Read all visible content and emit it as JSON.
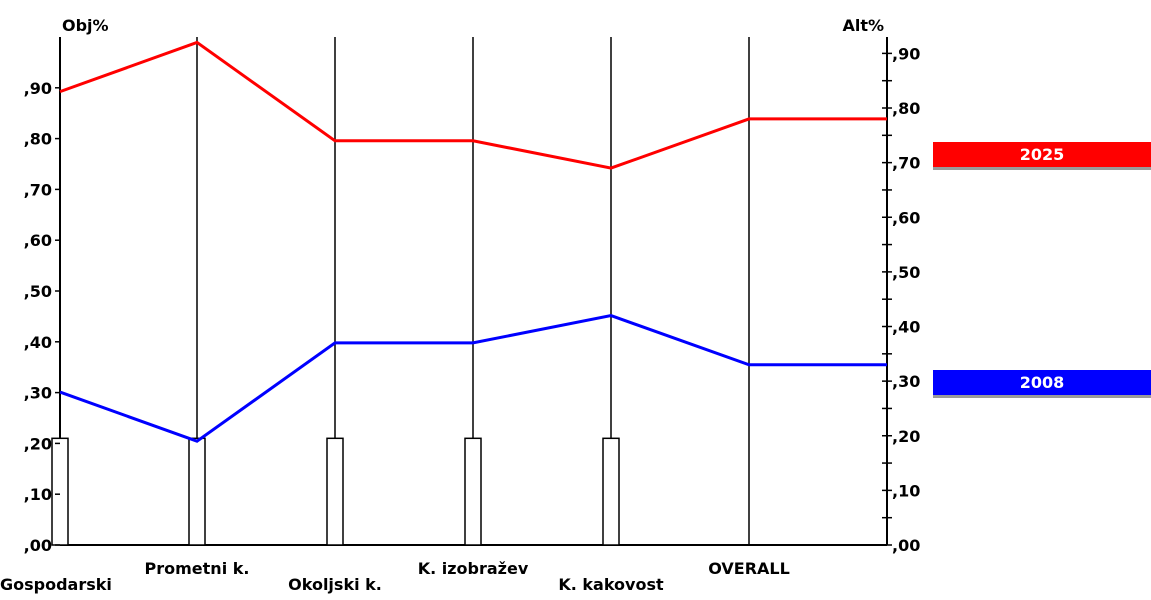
{
  "chart_data": {
    "type": "line",
    "left_axis_label": "Obj%",
    "right_axis_label": "Alt%",
    "categories": [
      "Gospodarski",
      "Prometni k.",
      "Okoljski k.",
      "K. izobražev",
      "K. kakovost",
      "OVERALL"
    ],
    "left_ticks": [
      ",00",
      ",10",
      ",20",
      ",30",
      ",40",
      ",50",
      ",60",
      ",70",
      ",80",
      ",90"
    ],
    "right_ticks": [
      ",00",
      ",10",
      ",20",
      ",30",
      ",40",
      ",50",
      ",60",
      ",70",
      ",80",
      ",90"
    ],
    "left_ylim": [
      0,
      1.0
    ],
    "right_ylim": [
      0,
      0.93
    ],
    "weights": [
      0.21,
      0.21,
      0.21,
      0.21,
      0.21,
      0
    ],
    "series": [
      {
        "name": "2025",
        "color": "#ff0000",
        "values": [
          0.83,
          0.92,
          0.74,
          0.74,
          0.69,
          0.78
        ]
      },
      {
        "name": "2008",
        "color": "#0000ff",
        "values": [
          0.28,
          0.19,
          0.37,
          0.37,
          0.42,
          0.33
        ]
      }
    ]
  }
}
